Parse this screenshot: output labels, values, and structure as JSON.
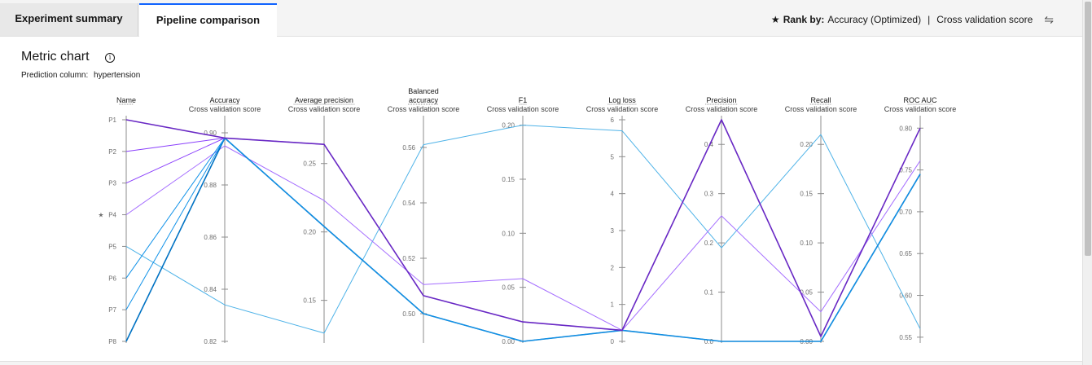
{
  "tabs": [
    {
      "label": "Experiment summary"
    },
    {
      "label": "Pipeline comparison"
    }
  ],
  "rank": {
    "label": "Rank by:",
    "metric": "Accuracy (Optimized)",
    "scope": "Cross validation score"
  },
  "panel": {
    "title": "Metric chart",
    "prediction_label": "Prediction column:",
    "prediction_value": "hypertension"
  },
  "chart_data": {
    "type": "parallel_coordinates",
    "subtitle": "Cross validation score",
    "starred_pipeline": "P4",
    "axes": [
      {
        "key": "name",
        "title": "Name",
        "subtitle": "",
        "type": "categorical",
        "categories": [
          "P1",
          "P2",
          "P3",
          "P4",
          "P5",
          "P6",
          "P7",
          "P8"
        ]
      },
      {
        "key": "accuracy",
        "title": "Accuracy",
        "subtitle": "Cross validation score",
        "range": [
          0.82,
          0.905
        ],
        "ticks": [
          "0.82",
          "0.84",
          "0.86",
          "0.88",
          "0.90"
        ],
        "tick_values": [
          0.82,
          0.84,
          0.86,
          0.88,
          0.9
        ]
      },
      {
        "key": "avg_precision",
        "title": "Average precision",
        "subtitle": "Cross validation score",
        "range": [
          0.12,
          0.282
        ],
        "ticks": [
          "0.15",
          "0.20",
          "0.25"
        ],
        "tick_values": [
          0.15,
          0.2,
          0.25
        ]
      },
      {
        "key": "balanced_accuracy",
        "title": "Balanced accuracy",
        "subtitle": "Cross validation score",
        "range": [
          0.49,
          0.57
        ],
        "ticks": [
          "0.50",
          "0.52",
          "0.54",
          "0.56"
        ],
        "tick_values": [
          0.5,
          0.52,
          0.54,
          0.56
        ]
      },
      {
        "key": "f1",
        "title": "F1",
        "subtitle": "Cross validation score",
        "range": [
          0,
          0.205
        ],
        "ticks": [
          "0.00",
          "0.05",
          "0.10",
          "0.15",
          "0.20"
        ],
        "tick_values": [
          0,
          0.05,
          0.1,
          0.15,
          0.2
        ]
      },
      {
        "key": "log_loss",
        "title": "Log loss",
        "subtitle": "Cross validation score",
        "range": [
          0,
          6
        ],
        "ticks": [
          "0",
          "1",
          "2",
          "3",
          "4",
          "5",
          "6"
        ],
        "tick_values": [
          0,
          1,
          2,
          3,
          4,
          5,
          6
        ]
      },
      {
        "key": "precision",
        "title": "Precision",
        "subtitle": "Cross validation score",
        "range": [
          0,
          0.45
        ],
        "ticks": [
          "0.0",
          "0.1",
          "0.2",
          "0.3",
          "0.4"
        ],
        "tick_values": [
          0,
          0.1,
          0.2,
          0.3,
          0.4
        ]
      },
      {
        "key": "recall",
        "title": "Recall",
        "subtitle": "Cross validation score",
        "range": [
          0,
          0.225
        ],
        "ticks": [
          "0.00",
          "0.05",
          "0.10",
          "0.15",
          "0.20"
        ],
        "tick_values": [
          0,
          0.05,
          0.1,
          0.15,
          0.2
        ]
      },
      {
        "key": "roc_auc",
        "title": "ROC AUC",
        "subtitle": "Cross validation score",
        "range": [
          0.545,
          0.81
        ],
        "ticks": [
          "0.55",
          "0.60",
          "0.65",
          "0.70",
          "0.75",
          "0.80"
        ],
        "tick_values": [
          0.55,
          0.6,
          0.65,
          0.7,
          0.75,
          0.8
        ]
      }
    ],
    "series": [
      {
        "name": "P1",
        "color": "#6929c4",
        "values": {
          "accuracy": 0.898,
          "avg_precision": 0.264,
          "balanced_accuracy": 0.5065,
          "f1": 0.018,
          "log_loss": 0.3,
          "precision": 0.45,
          "recall": 0.005,
          "roc_auc": 0.8
        }
      },
      {
        "name": "P2",
        "color": "#8a3ffc",
        "values": {
          "accuracy": 0.898,
          "avg_precision": 0.264,
          "balanced_accuracy": 0.5065,
          "f1": 0.018,
          "log_loss": 0.3,
          "precision": 0.45,
          "recall": 0.005,
          "roc_auc": 0.8
        }
      },
      {
        "name": "P3",
        "color": "#8a3ffc",
        "values": {
          "accuracy": 0.898,
          "avg_precision": 0.264,
          "balanced_accuracy": 0.5065,
          "f1": 0.018,
          "log_loss": 0.3,
          "precision": 0.45,
          "recall": 0.005,
          "roc_auc": 0.8
        }
      },
      {
        "name": "P4",
        "color": "#a56eff",
        "values": {
          "accuracy": 0.895,
          "avg_precision": 0.223,
          "balanced_accuracy": 0.5105,
          "f1": 0.058,
          "log_loss": 0.3,
          "precision": 0.255,
          "recall": 0.03,
          "roc_auc": 0.761
        }
      },
      {
        "name": "P5",
        "color": "#4fb3e8",
        "values": {
          "accuracy": 0.834,
          "avg_precision": 0.126,
          "balanced_accuracy": 0.561,
          "f1": 0.2,
          "log_loss": 5.7,
          "precision": 0.19,
          "recall": 0.21,
          "roc_auc": 0.56
        }
      },
      {
        "name": "P6",
        "color": "#1192e8",
        "values": {
          "accuracy": 0.898,
          "avg_precision": 0.204,
          "balanced_accuracy": 0.5,
          "f1": 0.0,
          "log_loss": 0.3,
          "precision": 0.0,
          "recall": 0.0,
          "roc_auc": 0.745
        }
      },
      {
        "name": "P7",
        "color": "#1192e8",
        "values": {
          "accuracy": 0.898,
          "avg_precision": 0.204,
          "balanced_accuracy": 0.5,
          "f1": 0.0,
          "log_loss": 0.3,
          "precision": 0.0,
          "recall": 0.0,
          "roc_auc": 0.745
        }
      },
      {
        "name": "P8",
        "color": "#0072c3",
        "values": {
          "accuracy": 0.898,
          "avg_precision": 0.204,
          "balanced_accuracy": 0.5,
          "f1": 0.0,
          "log_loss": 0.3,
          "precision": 0.0,
          "recall": 0.0,
          "roc_auc": 0.745
        }
      }
    ]
  }
}
